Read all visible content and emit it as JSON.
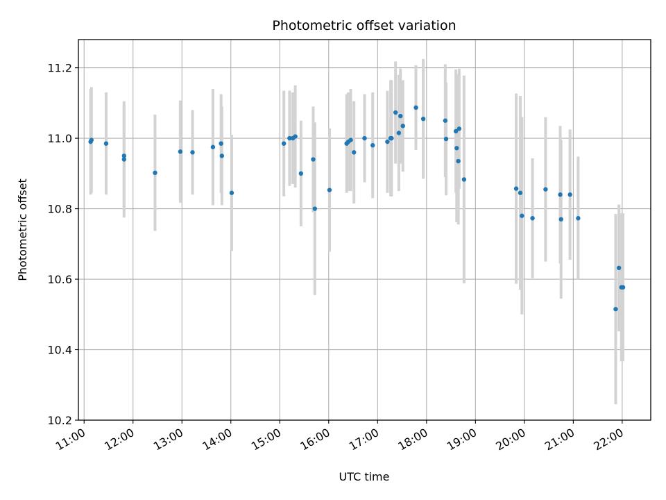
{
  "chart_data": {
    "type": "scatter",
    "title": "Photometric offset variation",
    "xlabel": "UTC time",
    "ylabel": "Photometric offset",
    "x_unit": "UTC hours",
    "xlim": [
      "10:53",
      "22:35"
    ],
    "ylim": [
      10.2,
      11.28
    ],
    "x_ticks": [
      "11:00",
      "12:00",
      "13:00",
      "14:00",
      "15:00",
      "16:00",
      "17:00",
      "18:00",
      "19:00",
      "20:00",
      "21:00",
      "22:00"
    ],
    "y_ticks": [
      "10.2",
      "10.4",
      "10.6",
      "10.8",
      "11.0",
      "11.2"
    ],
    "grid": true,
    "colors": {
      "points": "#1f77b4",
      "error_bars": "#d3d3d3",
      "grid": "#b0b0b0"
    },
    "series": [
      {
        "x": [
          "11:08",
          "11:09",
          "11:27",
          "11:49",
          "11:49",
          "12:27",
          "12:58",
          "13:13",
          "13:38",
          "13:48",
          "13:49",
          "14:01",
          "15:05",
          "15:12",
          "15:16",
          "15:19",
          "15:26",
          "15:41",
          "15:43",
          "16:01",
          "16:22",
          "16:24",
          "16:27",
          "16:31",
          "16:44",
          "16:54",
          "17:12",
          "17:16",
          "17:17",
          "17:22",
          "17:26",
          "17:28",
          "17:31",
          "17:47",
          "17:56",
          "18:23",
          "18:24",
          "18:36",
          "18:37",
          "18:39",
          "18:40",
          "18:46",
          "19:50",
          "19:55",
          "19:57",
          "20:10",
          "20:26",
          "20:44",
          "20:45",
          "20:56",
          "21:06",
          "21:52",
          "21:56",
          "21:59",
          "22:01"
        ],
        "y": [
          10.99,
          10.995,
          10.985,
          10.95,
          10.94,
          10.902,
          10.962,
          10.96,
          10.975,
          10.985,
          10.95,
          10.845,
          10.985,
          11.0,
          11.0,
          11.005,
          10.9,
          10.94,
          10.8,
          10.853,
          10.985,
          10.99,
          10.995,
          10.96,
          11.0,
          10.98,
          10.99,
          11.0,
          11.0,
          11.073,
          11.015,
          11.063,
          11.035,
          11.087,
          11.055,
          11.05,
          10.998,
          11.02,
          10.972,
          10.935,
          11.027,
          10.883,
          10.857,
          10.845,
          10.78,
          10.773,
          10.855,
          10.84,
          10.77,
          10.84,
          10.773,
          10.515,
          10.632,
          10.577,
          10.577
        ],
        "yerr": [
          0.15,
          0.15,
          0.145,
          0.145,
          0.165,
          0.165,
          0.145,
          0.12,
          0.165,
          0.14,
          0.14,
          0.165,
          0.15,
          0.135,
          0.13,
          0.145,
          0.15,
          0.15,
          0.245,
          0.175,
          0.14,
          0.14,
          0.145,
          0.145,
          0.125,
          0.15,
          0.145,
          0.165,
          0.165,
          0.145,
          0.165,
          0.135,
          0.13,
          0.12,
          0.17,
          0.16,
          0.16,
          0.175,
          0.21,
          0.18,
          0.17,
          0.295,
          0.27,
          0.275,
          0.28,
          0.17,
          0.205,
          0.195,
          0.225,
          0.185,
          0.175,
          0.27,
          0.18,
          0.21,
          0.21
        ]
      }
    ]
  }
}
